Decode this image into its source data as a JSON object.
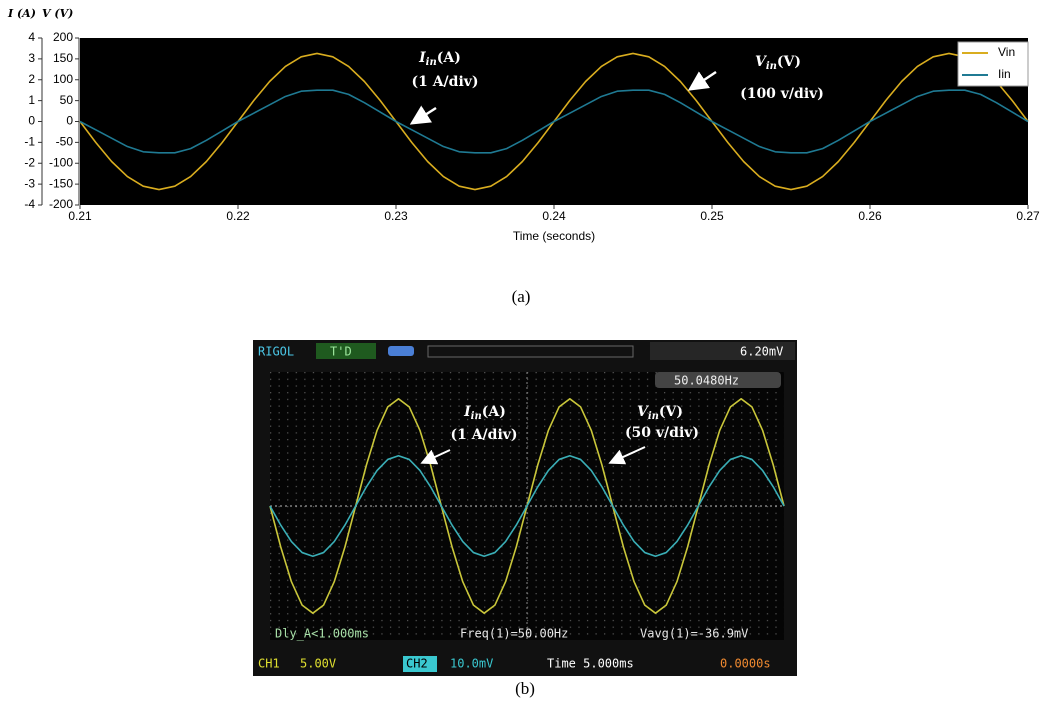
{
  "chart_data": [
    {
      "type": "line",
      "y_label": "V (V)",
      "y2_label": "I (A)",
      "x_label": "Time (seconds)",
      "caption": "(a)",
      "xlim": [
        0.21,
        0.27
      ],
      "xticks": [
        0.21,
        0.22,
        0.23,
        0.24,
        0.25,
        0.26,
        0.27
      ],
      "ylim": [
        -200,
        200
      ],
      "yticks": [
        200,
        150,
        100,
        50,
        0,
        -50,
        -100,
        -150,
        -200
      ],
      "y2lim": [
        -4,
        4
      ],
      "y2ticks": [
        4,
        3,
        2,
        1,
        0,
        -1,
        -2,
        -3,
        -4
      ],
      "grid": false,
      "legend": "top-right",
      "x": [
        0.21,
        0.211,
        0.212,
        0.213,
        0.214,
        0.215,
        0.216,
        0.217,
        0.218,
        0.219,
        0.22,
        0.221,
        0.222,
        0.223,
        0.224,
        0.225,
        0.226,
        0.227,
        0.228,
        0.229,
        0.23,
        0.231,
        0.232,
        0.233,
        0.234,
        0.235,
        0.236,
        0.237,
        0.238,
        0.239,
        0.24,
        0.241,
        0.242,
        0.243,
        0.244,
        0.245,
        0.246,
        0.247,
        0.248,
        0.249,
        0.25,
        0.251,
        0.252,
        0.253,
        0.254,
        0.255,
        0.256,
        0.257,
        0.258,
        0.259,
        0.26,
        0.261,
        0.262,
        0.263,
        0.264,
        0.265,
        0.266,
        0.267,
        0.268,
        0.269,
        0.27
      ],
      "series": [
        {
          "name": "Vin",
          "color": "#d9ad1f",
          "values": [
            0,
            -50.4,
            -95.8,
            -131.9,
            -155,
            -163,
            -155,
            -131.9,
            -95.8,
            -50.4,
            0,
            50.4,
            95.8,
            131.9,
            155,
            163,
            155,
            131.9,
            95.8,
            50.4,
            0,
            -50.4,
            -95.8,
            -131.9,
            -155,
            -163,
            -155,
            -131.9,
            -95.8,
            -50.4,
            0,
            50.4,
            95.8,
            131.9,
            155,
            163,
            155,
            131.9,
            95.8,
            50.4,
            0,
            -50.4,
            -95.8,
            -131.9,
            -155,
            -163,
            -155,
            -131.9,
            -95.8,
            -50.4,
            0,
            50.4,
            95.8,
            131.9,
            155,
            163,
            155,
            131.9,
            95.8,
            50.4,
            0
          ]
        },
        {
          "name": "Iin",
          "color": "#1f7a93",
          "axis": "y2",
          "values": [
            0,
            -0.4,
            -0.8,
            -1.2,
            -1.45,
            -1.5,
            -1.5,
            -1.3,
            -0.9,
            -0.45,
            0,
            0.4,
            0.8,
            1.2,
            1.45,
            1.5,
            1.5,
            1.3,
            0.9,
            0.45,
            0,
            -0.4,
            -0.8,
            -1.2,
            -1.45,
            -1.5,
            -1.5,
            -1.3,
            -0.9,
            -0.45,
            0,
            0.4,
            0.8,
            1.2,
            1.45,
            1.5,
            1.5,
            1.3,
            0.9,
            0.45,
            0,
            -0.4,
            -0.8,
            -1.2,
            -1.45,
            -1.5,
            -1.5,
            -1.3,
            -0.9,
            -0.45,
            0,
            0.4,
            0.8,
            1.2,
            1.45,
            1.5,
            1.5,
            1.3,
            0.9,
            0.45,
            0
          ]
        }
      ],
      "annotations": [
        {
          "parts": [
            "I",
            "in",
            "(A)"
          ],
          "scale": "(1 A/div)"
        },
        {
          "parts": [
            "V",
            "in",
            "(V)"
          ],
          "scale": "(100 v/div)"
        }
      ]
    },
    {
      "type": "line",
      "caption": "(b)",
      "xlim": [
        0,
        12
      ],
      "ylim": [
        -4,
        4
      ],
      "x": [
        0,
        0.25,
        0.5,
        0.75,
        1,
        1.25,
        1.5,
        1.75,
        2,
        2.25,
        2.5,
        2.75,
        3,
        3.25,
        3.5,
        3.75,
        4,
        4.25,
        4.5,
        4.75,
        5,
        5.25,
        5.5,
        5.75,
        6,
        6.25,
        6.5,
        6.75,
        7,
        7.25,
        7.5,
        7.75,
        8,
        8.25,
        8.5,
        8.75,
        9,
        9.25,
        9.5,
        9.75,
        10,
        10.25,
        10.5,
        10.75,
        11,
        11.25,
        11.5,
        11.75,
        12
      ],
      "series": [
        {
          "name": "CH1",
          "color": "#c9c63a",
          "values": [
            0,
            -1.22,
            -2.26,
            -2.96,
            -3.2,
            -2.96,
            -2.26,
            -1.22,
            0,
            1.22,
            2.26,
            2.96,
            3.2,
            2.96,
            2.26,
            1.22,
            0,
            -1.22,
            -2.26,
            -2.96,
            -3.2,
            -2.96,
            -2.26,
            -1.22,
            0,
            1.22,
            2.26,
            2.96,
            3.2,
            2.96,
            2.26,
            1.22,
            0,
            -1.22,
            -2.26,
            -2.96,
            -3.2,
            -2.96,
            -2.26,
            -1.22,
            0,
            1.22,
            2.26,
            2.96,
            3.2,
            2.96,
            2.26,
            1.22,
            0
          ]
        },
        {
          "name": "CH2",
          "color": "#3aaeb6",
          "values": [
            0,
            -0.57,
            -1.06,
            -1.39,
            -1.5,
            -1.39,
            -1.06,
            -0.57,
            0,
            0.57,
            1.06,
            1.39,
            1.5,
            1.39,
            1.06,
            0.57,
            0,
            -0.57,
            -1.06,
            -1.39,
            -1.5,
            -1.39,
            -1.06,
            -0.57,
            0,
            0.57,
            1.06,
            1.39,
            1.5,
            1.39,
            1.06,
            0.57,
            0,
            -0.57,
            -1.06,
            -1.39,
            -1.5,
            -1.39,
            -1.06,
            -0.57,
            0,
            0.57,
            1.06,
            1.39,
            1.5,
            1.39,
            1.06,
            0.57,
            0
          ]
        }
      ],
      "header": {
        "brand": "RIGOL",
        "mode": "T'D",
        "trigger_level": "6.20mV",
        "frequency": "50.0480Hz"
      },
      "measurements": [
        "Dly_A<1.000ms",
        "Freq(1)=50.00Hz",
        "Vavg(1)=-36.9mV"
      ],
      "footer": {
        "ch1_scale": "5.00V",
        "ch2_scale": "10.0mV",
        "time": "Time 5.000ms",
        "offset": "0.0000s"
      },
      "annotations": [
        {
          "parts": [
            "I",
            "in",
            "(A)"
          ],
          "scale": "(1 A/div)"
        },
        {
          "parts": [
            "V",
            "in",
            "(V)"
          ],
          "scale": "(50 v/div)"
        }
      ]
    }
  ]
}
